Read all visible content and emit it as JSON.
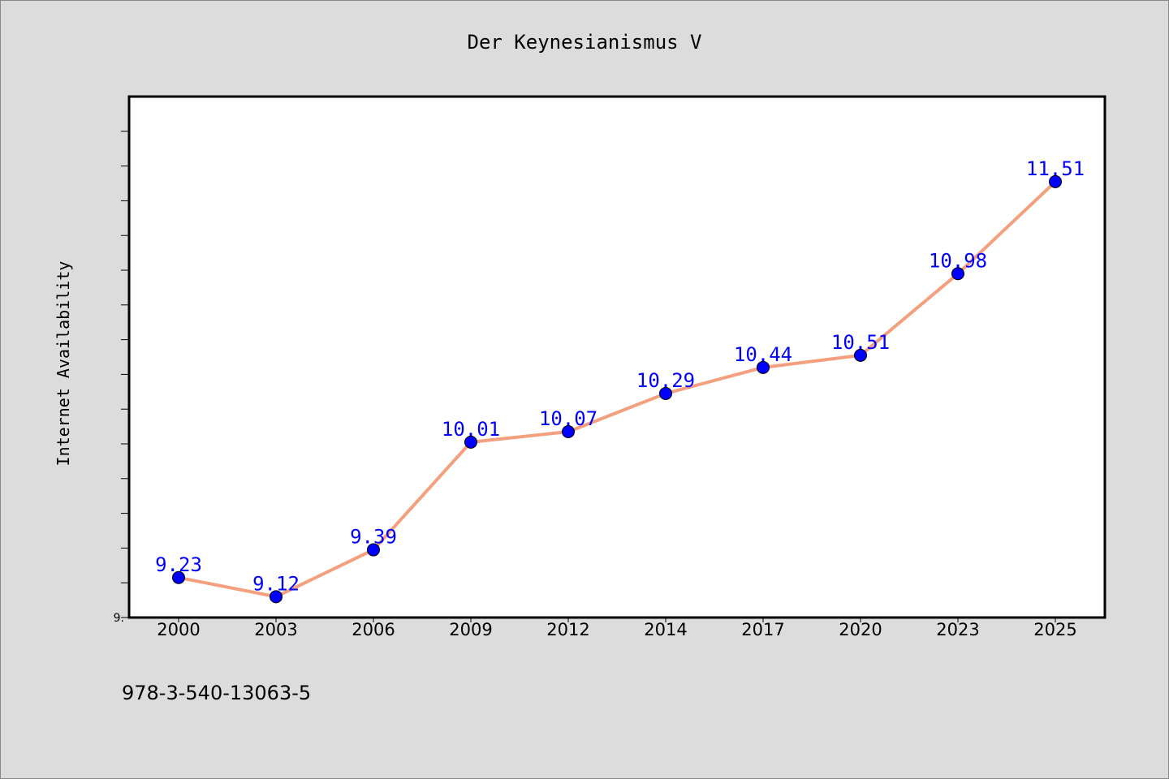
{
  "footer": {
    "isbn": "978-3-540-13063-5"
  },
  "colors": {
    "line": "#f4a07e",
    "marker": "#0000ff",
    "label": "#0000ff",
    "frame": "#000000",
    "plot_bg": "#ffffff",
    "page_bg": "#dcdcdc"
  },
  "chart_data": {
    "type": "line",
    "title": "Der Keynesianismus V",
    "xlabel": "",
    "ylabel": "Internet Availability",
    "categories": [
      "2000",
      "2003",
      "2006",
      "2009",
      "2012",
      "2014",
      "2017",
      "2020",
      "2023",
      "2025"
    ],
    "series": [
      {
        "values": [
          9.23,
          9.12,
          9.39,
          10.01,
          10.07,
          10.29,
          10.44,
          10.51,
          10.98,
          11.51
        ]
      }
    ],
    "value_labels": [
      "9.23",
      "9.12",
      "9.39",
      "10.01",
      "10.07",
      "10.29",
      "10.44",
      "10.51",
      "10.98",
      "11.51"
    ],
    "y_tick_labels": [
      "9."
    ],
    "ylim": [
      9.0,
      12.0
    ],
    "grid": false,
    "legend": "none"
  }
}
